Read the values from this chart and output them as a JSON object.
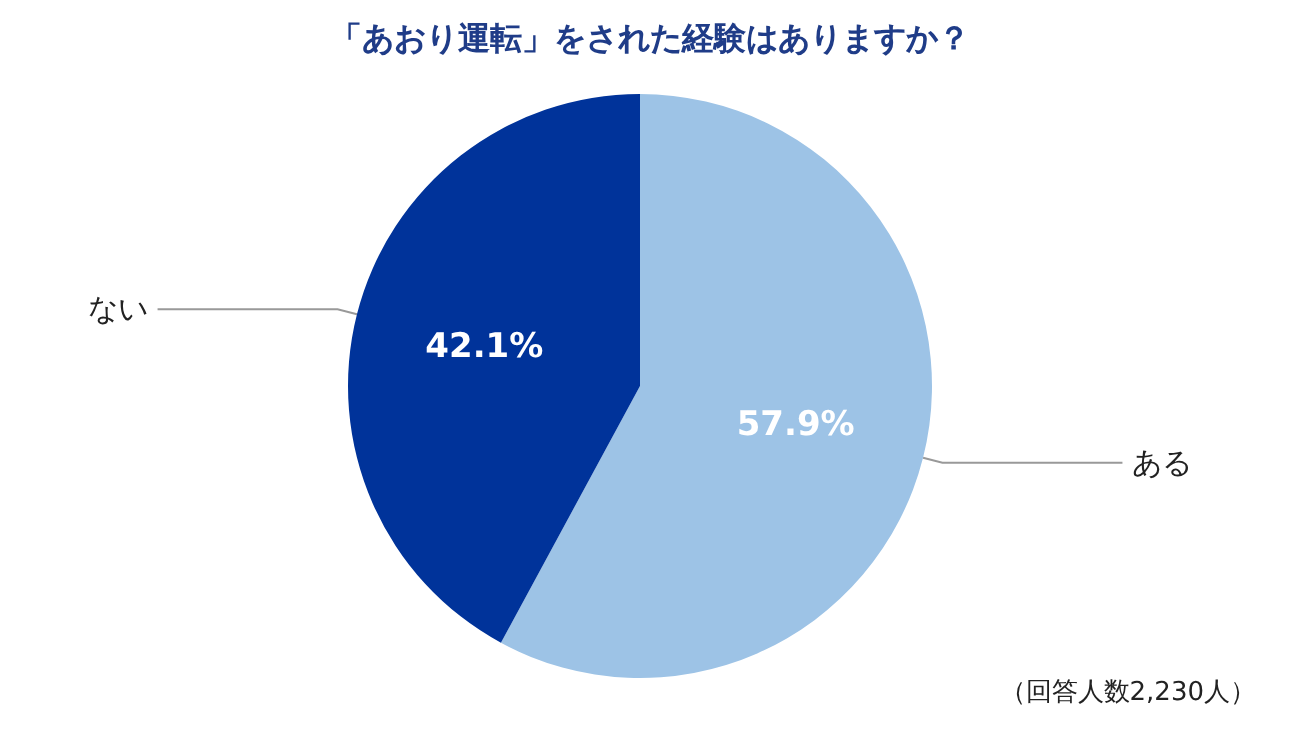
{
  "chart_data": {
    "type": "pie",
    "title": "「あおり運転」をされた経験はありますか？",
    "categories": [
      "ある",
      "ない"
    ],
    "values": [
      57.9,
      42.1
    ],
    "colors": [
      "#9dc3e6",
      "#00339a"
    ],
    "value_labels": [
      "57.9%",
      "42.1%"
    ],
    "annotations": [
      "（回答人数2,230人）"
    ],
    "legend": false
  }
}
